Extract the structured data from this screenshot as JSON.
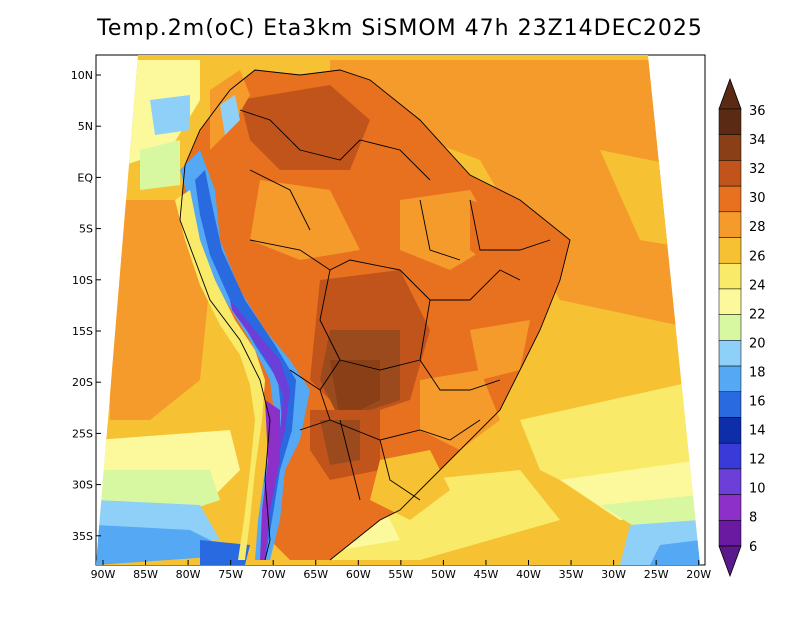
{
  "title": "Temp.2m(oC) Eta3km SiSMOM 47h 23Z14DEC2025",
  "lat_ticks": [
    "10N",
    "5N",
    "EQ",
    "5S",
    "10S",
    "15S",
    "20S",
    "25S",
    "30S",
    "35S"
  ],
  "lon_ticks": [
    "90W",
    "85W",
    "80W",
    "75W",
    "70W",
    "65W",
    "60W",
    "55W",
    "50W",
    "45W",
    "40W",
    "35W",
    "30W",
    "25W",
    "20W"
  ],
  "colorbar": {
    "labels": [
      "36",
      "34",
      "32",
      "30",
      "28",
      "26",
      "24",
      "22",
      "20",
      "18",
      "16",
      "14",
      "12",
      "10",
      "8",
      "6"
    ],
    "colors": [
      "#5b2a14",
      "#8b3f17",
      "#c0541b",
      "#e7711f",
      "#f59b2c",
      "#f6c233",
      "#f9ea6a",
      "#fbf99c",
      "#d8f7a1",
      "#8fd0f9",
      "#55a8f3",
      "#2a6ae0",
      "#0d2ea8",
      "#3a3ad8",
      "#6b3fd8",
      "#8d2fc9",
      "#6a1aa0"
    ],
    "top_color": "#5b2a14",
    "bottom_color": "#5a1a8c"
  }
}
